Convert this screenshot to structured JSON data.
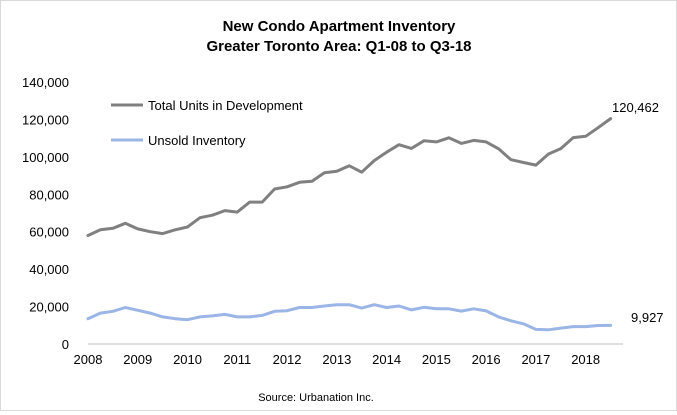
{
  "chart_data": {
    "type": "line",
    "title_line1": "New Condo Apartment Inventory",
    "title_line2": "Greater Toronto Area: Q1-08 to Q3-18",
    "source": "Source:  Urbanation Inc.",
    "ylim": [
      0,
      140000
    ],
    "yticks": [
      "0",
      "20,000",
      "40,000",
      "60,000",
      "80,000",
      "100,000",
      "120,000",
      "140,000"
    ],
    "ytick_values": [
      0,
      20000,
      40000,
      60000,
      80000,
      100000,
      120000,
      140000
    ],
    "xticks": [
      "2008",
      "2009",
      "2010",
      "2011",
      "2012",
      "2013",
      "2014",
      "2015",
      "2016",
      "2017",
      "2018"
    ],
    "xlim": [
      2008,
      2018.75
    ],
    "grid": false,
    "legend_position": "top-left",
    "series": [
      {
        "name": "Total Units in Development",
        "color": "#808080",
        "end_label": "120,462",
        "x": [
          2008.0,
          2008.25,
          2008.5,
          2008.75,
          2009.0,
          2009.25,
          2009.5,
          2009.75,
          2010.0,
          2010.25,
          2010.5,
          2010.75,
          2011.0,
          2011.25,
          2011.5,
          2011.75,
          2012.0,
          2012.25,
          2012.5,
          2012.75,
          2013.0,
          2013.25,
          2013.5,
          2013.75,
          2014.0,
          2014.25,
          2014.5,
          2014.75,
          2015.0,
          2015.25,
          2015.5,
          2015.75,
          2016.0,
          2016.25,
          2016.5,
          2016.75,
          2017.0,
          2017.25,
          2017.5,
          2017.75,
          2018.0,
          2018.25,
          2018.5
        ],
        "values": [
          58000,
          61000,
          61800,
          64500,
          61500,
          60000,
          59000,
          61000,
          62500,
          67500,
          68800,
          71300,
          70500,
          75800,
          75800,
          82800,
          84000,
          86400,
          87000,
          91500,
          92300,
          95200,
          91800,
          98000,
          102500,
          106500,
          104500,
          108600,
          108000,
          110200,
          107200,
          108800,
          108000,
          104300,
          98500,
          97000,
          95600,
          101500,
          104400,
          110300,
          111000,
          115600,
          120462
        ]
      },
      {
        "name": "Unsold Inventory",
        "color": "#9ab5e6",
        "end_label": "9,927",
        "x": [
          2008.0,
          2008.25,
          2008.5,
          2008.75,
          2009.0,
          2009.25,
          2009.5,
          2009.75,
          2010.0,
          2010.25,
          2010.5,
          2010.75,
          2011.0,
          2011.25,
          2011.5,
          2011.75,
          2012.0,
          2012.25,
          2012.5,
          2012.75,
          2013.0,
          2013.25,
          2013.5,
          2013.75,
          2014.0,
          2014.25,
          2014.5,
          2014.75,
          2015.0,
          2015.25,
          2015.5,
          2015.75,
          2016.0,
          2016.25,
          2016.5,
          2016.75,
          2017.0,
          2017.25,
          2017.5,
          2017.75,
          2018.0,
          2018.25,
          2018.5
        ],
        "values": [
          13500,
          16500,
          17500,
          19500,
          18000,
          16500,
          14500,
          13500,
          13000,
          14500,
          15000,
          15800,
          14500,
          14500,
          15300,
          17500,
          17800,
          19500,
          19500,
          20300,
          21000,
          21000,
          19200,
          21000,
          19500,
          20300,
          18200,
          19600,
          18800,
          18800,
          17600,
          18800,
          17700,
          14500,
          12400,
          10800,
          7800,
          7600,
          8500,
          9300,
          9300,
          9900,
          9927
        ]
      }
    ]
  }
}
